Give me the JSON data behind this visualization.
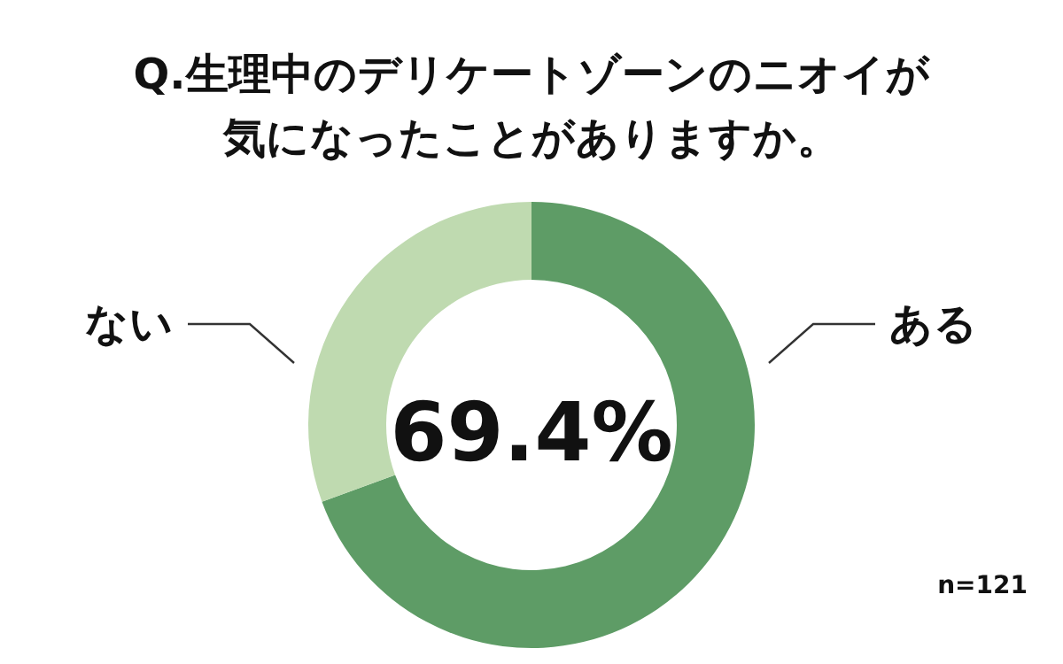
{
  "chart_data": {
    "type": "donut",
    "title": "Q.生理中のデリケートゾーンのニオイが気になったことがありますか。",
    "categories": [
      "ある",
      "ない"
    ],
    "values": [
      69.4,
      30.6
    ],
    "colors": [
      "#5e9c66",
      "#bfdab0"
    ],
    "value_labels": [
      "69.4%",
      null
    ],
    "annotations": [
      "n=121"
    ]
  }
}
